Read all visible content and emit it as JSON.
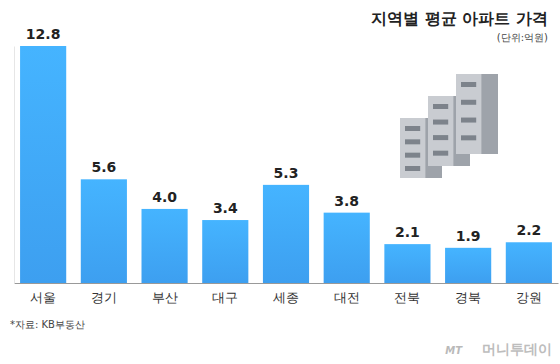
{
  "chart_data": {
    "type": "bar",
    "title": "지역별 평균 아파트 가격",
    "subtitle": "(단위:억원)",
    "categories": [
      "서울",
      "경기",
      "부산",
      "대구",
      "세종",
      "대전",
      "전북",
      "경북",
      "강원"
    ],
    "values": [
      12.8,
      5.6,
      4.0,
      3.4,
      5.3,
      3.8,
      2.1,
      1.9,
      2.2
    ],
    "value_labels": [
      "12.8",
      "5.6",
      "4.0",
      "3.4",
      "5.3",
      "3.8",
      "2.1",
      "1.9",
      "2.2"
    ],
    "color": "#3d9ff0",
    "ylim": [
      0,
      12.8
    ],
    "data_labels": true,
    "tick_labels": "x",
    "annotations": [
      "*자료: KB부동산",
      "MT",
      "머니투데이"
    ]
  }
}
